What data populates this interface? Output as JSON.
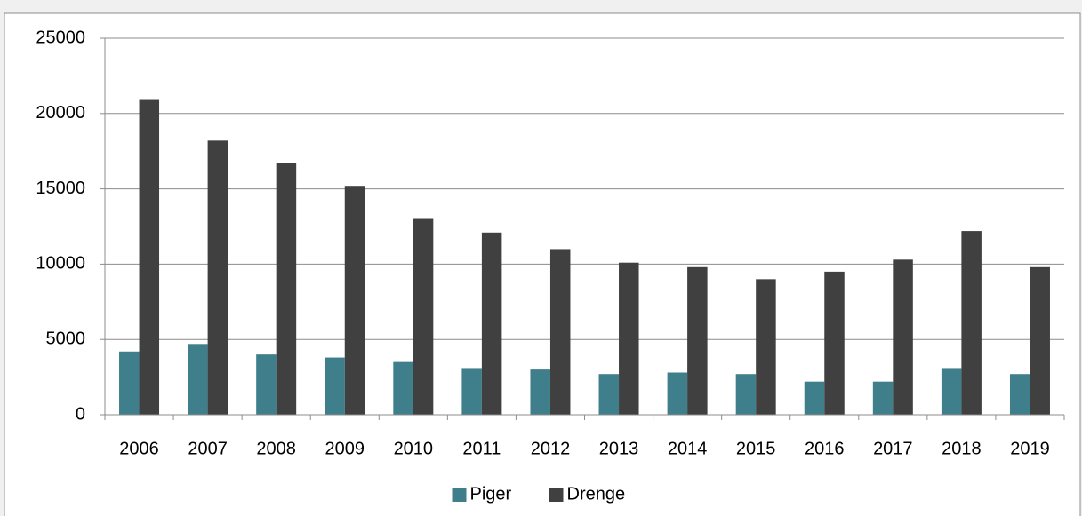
{
  "chart_data": {
    "type": "bar",
    "categories": [
      "2006",
      "2007",
      "2008",
      "2009",
      "2010",
      "2011",
      "2012",
      "2013",
      "2014",
      "2015",
      "2016",
      "2017",
      "2018",
      "2019"
    ],
    "series": [
      {
        "name": "Piger",
        "color": "#3f7f8b",
        "values": [
          4200,
          4700,
          4000,
          3800,
          3500,
          3100,
          3000,
          2700,
          2800,
          2700,
          2200,
          2200,
          3100,
          2700
        ]
      },
      {
        "name": "Drenge",
        "color": "#404040",
        "values": [
          20900,
          18200,
          16700,
          15200,
          13000,
          12100,
          11000,
          10100,
          9800,
          9000,
          9500,
          10300,
          12200,
          9800
        ]
      }
    ],
    "ylim": [
      0,
      25000
    ],
    "yticks": [
      0,
      5000,
      10000,
      15000,
      20000,
      25000
    ],
    "grid": true,
    "legend": "bottom"
  }
}
